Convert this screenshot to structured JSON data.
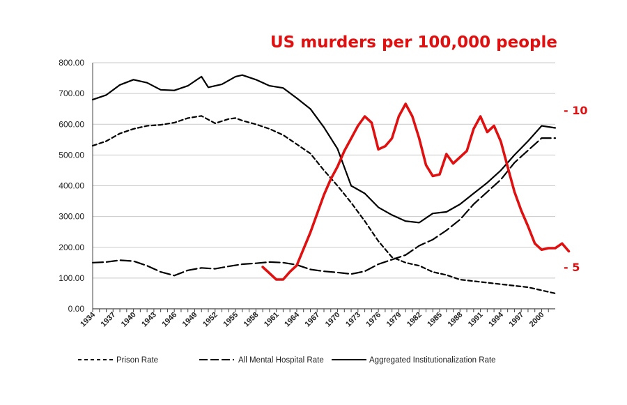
{
  "chart_data": {
    "type": "line",
    "title": "US murders per 100,000 people",
    "title_color": "#e01010",
    "left_axis": {
      "ylim": [
        0,
        800
      ],
      "ticks": [
        "0.00",
        "100.00",
        "200.00",
        "300.00",
        "400.00",
        "500.00",
        "600.00",
        "700.00",
        "800.00"
      ]
    },
    "right_axis": {
      "ticks": [
        {
          "value": 5,
          "label": "- 5"
        },
        {
          "value": 10,
          "label": "- 10"
        }
      ],
      "color": "#e01010"
    },
    "x_axis": {
      "xlim": [
        1934,
        2002
      ],
      "tick_labels": [
        "1934",
        "1937",
        "1940",
        "1943",
        "1946",
        "1949",
        "1952",
        "1955",
        "1958",
        "1961",
        "1964",
        "1967",
        "1970",
        "1973",
        "1976",
        "1979",
        "1982",
        "1985",
        "1988",
        "1991",
        "1994",
        "1997",
        "2000"
      ]
    },
    "series": [
      {
        "name": "Prison Rate",
        "dash": "short",
        "color": "#000000",
        "points": [
          [
            1934,
            530
          ],
          [
            1936,
            545
          ],
          [
            1938,
            570
          ],
          [
            1940,
            585
          ],
          [
            1942,
            595
          ],
          [
            1944,
            598
          ],
          [
            1946,
            605
          ],
          [
            1948,
            620
          ],
          [
            1950,
            627
          ],
          [
            1952,
            603
          ],
          [
            1954,
            617
          ],
          [
            1955,
            620
          ],
          [
            1956,
            612
          ],
          [
            1958,
            600
          ],
          [
            1960,
            585
          ],
          [
            1962,
            565
          ],
          [
            1964,
            535
          ],
          [
            1966,
            505
          ],
          [
            1968,
            450
          ],
          [
            1970,
            400
          ],
          [
            1972,
            345
          ],
          [
            1974,
            285
          ],
          [
            1976,
            220
          ],
          [
            1978,
            168
          ],
          [
            1980,
            150
          ],
          [
            1982,
            140
          ],
          [
            1984,
            120
          ],
          [
            1986,
            110
          ],
          [
            1988,
            95
          ],
          [
            1990,
            90
          ],
          [
            1992,
            85
          ],
          [
            1994,
            80
          ],
          [
            1996,
            75
          ],
          [
            1998,
            70
          ],
          [
            2000,
            60
          ],
          [
            2002,
            50
          ]
        ]
      },
      {
        "name": "All Mental Hospital Rate",
        "dash": "long",
        "color": "#000000",
        "points": [
          [
            1934,
            150
          ],
          [
            1936,
            152
          ],
          [
            1938,
            158
          ],
          [
            1940,
            155
          ],
          [
            1942,
            140
          ],
          [
            1944,
            120
          ],
          [
            1946,
            108
          ],
          [
            1948,
            125
          ],
          [
            1950,
            133
          ],
          [
            1952,
            130
          ],
          [
            1954,
            138
          ],
          [
            1956,
            145
          ],
          [
            1958,
            148
          ],
          [
            1960,
            152
          ],
          [
            1962,
            150
          ],
          [
            1964,
            143
          ],
          [
            1966,
            128
          ],
          [
            1968,
            122
          ],
          [
            1970,
            118
          ],
          [
            1972,
            113
          ],
          [
            1974,
            122
          ],
          [
            1976,
            145
          ],
          [
            1978,
            160
          ],
          [
            1980,
            175
          ],
          [
            1982,
            205
          ],
          [
            1984,
            225
          ],
          [
            1986,
            255
          ],
          [
            1988,
            290
          ],
          [
            1990,
            340
          ],
          [
            1992,
            380
          ],
          [
            1994,
            420
          ],
          [
            1996,
            475
          ],
          [
            1998,
            515
          ],
          [
            2000,
            555
          ],
          [
            2002,
            555
          ]
        ]
      },
      {
        "name": "Aggregated Institutionalization Rate",
        "dash": "solid",
        "color": "#000000",
        "points": [
          [
            1934,
            680
          ],
          [
            1936,
            695
          ],
          [
            1938,
            728
          ],
          [
            1940,
            745
          ],
          [
            1942,
            735
          ],
          [
            1944,
            712
          ],
          [
            1946,
            710
          ],
          [
            1948,
            725
          ],
          [
            1950,
            755
          ],
          [
            1951,
            720
          ],
          [
            1953,
            730
          ],
          [
            1955,
            755
          ],
          [
            1956,
            760
          ],
          [
            1958,
            745
          ],
          [
            1960,
            725
          ],
          [
            1962,
            718
          ],
          [
            1964,
            685
          ],
          [
            1966,
            650
          ],
          [
            1968,
            590
          ],
          [
            1970,
            520
          ],
          [
            1972,
            400
          ],
          [
            1974,
            375
          ],
          [
            1976,
            330
          ],
          [
            1978,
            305
          ],
          [
            1980,
            285
          ],
          [
            1982,
            280
          ],
          [
            1984,
            310
          ],
          [
            1986,
            315
          ],
          [
            1988,
            340
          ],
          [
            1990,
            375
          ],
          [
            1992,
            410
          ],
          [
            1994,
            450
          ],
          [
            1996,
            500
          ],
          [
            1998,
            545
          ],
          [
            2000,
            595
          ],
          [
            2002,
            588
          ]
        ]
      },
      {
        "name": "US murders per 100,000 people",
        "axis": "right",
        "dash": "solid",
        "color": "#e01010",
        "points": [
          [
            1959,
            5.0
          ],
          [
            1961,
            4.6
          ],
          [
            1962,
            4.6
          ],
          [
            1963,
            4.85
          ],
          [
            1964,
            5.05
          ],
          [
            1966,
            6.1
          ],
          [
            1968,
            7.3
          ],
          [
            1969,
            7.8
          ],
          [
            1970,
            8.2
          ],
          [
            1971,
            8.7
          ],
          [
            1972,
            9.1
          ],
          [
            1973,
            9.5
          ],
          [
            1974,
            9.8
          ],
          [
            1975,
            9.6
          ],
          [
            1976,
            8.75
          ],
          [
            1977,
            8.85
          ],
          [
            1978,
            9.1
          ],
          [
            1979,
            9.8
          ],
          [
            1980,
            10.2
          ],
          [
            1981,
            9.8
          ],
          [
            1982,
            9.1
          ],
          [
            1983,
            8.25
          ],
          [
            1984,
            7.9
          ],
          [
            1985,
            7.95
          ],
          [
            1986,
            8.6
          ],
          [
            1987,
            8.3
          ],
          [
            1988,
            8.5
          ],
          [
            1989,
            8.7
          ],
          [
            1990,
            9.4
          ],
          [
            1991,
            9.8
          ],
          [
            1992,
            9.3
          ],
          [
            1993,
            9.5
          ],
          [
            1994,
            9.0
          ],
          [
            1995,
            8.2
          ],
          [
            1996,
            7.4
          ],
          [
            1997,
            6.8
          ],
          [
            1998,
            6.3
          ],
          [
            1999,
            5.75
          ],
          [
            2000,
            5.55
          ],
          [
            2001,
            5.6
          ],
          [
            2002,
            5.6
          ],
          [
            2003,
            5.75
          ],
          [
            2004,
            5.5
          ]
        ]
      }
    ],
    "legend_position": "bottom"
  }
}
